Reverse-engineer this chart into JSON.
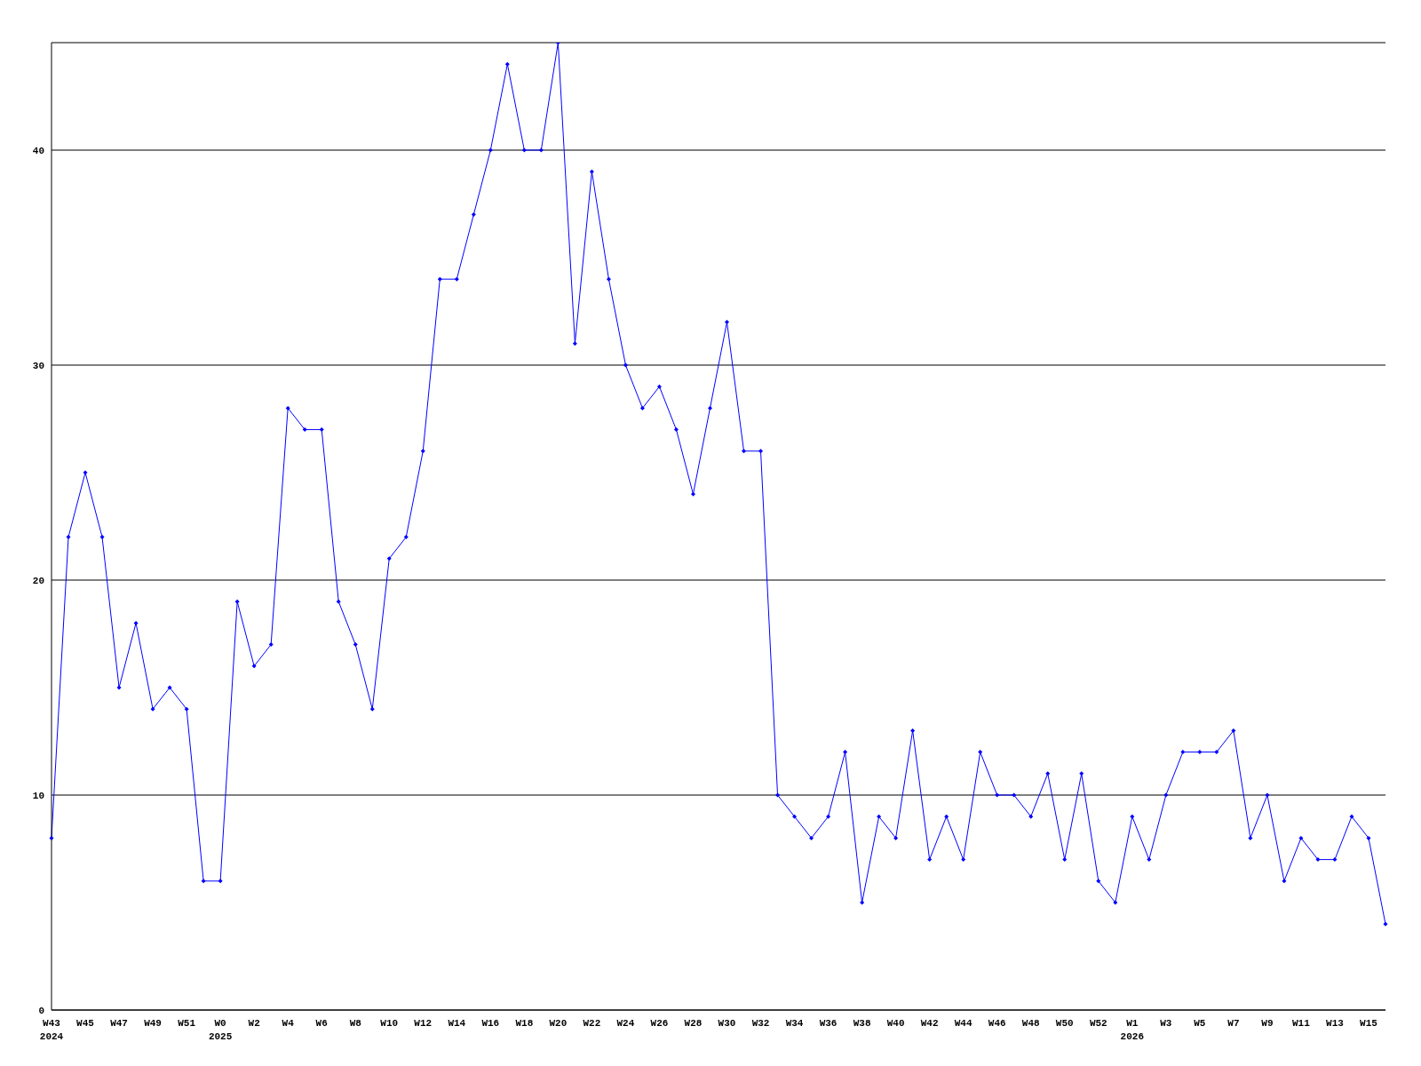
{
  "chart_data": {
    "type": "line",
    "categories": [
      "W43\n2024",
      null,
      "W45",
      null,
      "W47",
      null,
      "W49",
      null,
      "W51",
      null,
      "W0\n2025",
      null,
      "W2",
      null,
      "W4",
      null,
      "W6",
      null,
      "W8",
      null,
      "W10",
      null,
      "W12",
      null,
      "W14",
      null,
      "W16",
      null,
      "W18",
      null,
      "W20",
      null,
      "W22",
      null,
      "W24",
      null,
      "W26",
      null,
      "W28",
      null,
      "W30",
      null,
      "W32",
      null,
      "W34",
      null,
      "W36",
      null,
      "W38",
      null,
      "W40",
      null,
      "W42",
      null,
      "W44",
      null,
      "W46",
      null,
      "W48",
      null,
      "W50",
      null,
      "W52",
      null,
      "W1\n2026",
      null,
      "W3",
      null,
      "W5",
      null,
      "W7",
      null,
      "W9",
      null,
      "W11",
      null,
      "W13",
      null,
      "W15",
      null
    ],
    "series": [
      {
        "color": "#0000ff",
        "values": [
          8,
          22,
          25,
          22,
          15,
          18,
          14,
          15,
          14,
          6,
          6,
          19,
          16,
          17,
          28,
          27,
          27,
          19,
          17,
          14,
          21,
          22,
          26,
          34,
          34,
          37,
          40,
          44,
          40,
          40,
          45,
          31,
          39,
          34,
          30,
          28,
          29,
          27,
          24,
          28,
          32,
          26,
          26,
          10,
          9,
          8,
          9,
          12,
          5,
          9,
          8,
          13,
          7,
          9,
          7,
          12,
          10,
          10,
          9,
          11,
          7,
          11,
          6,
          5,
          9,
          7,
          10,
          12,
          12,
          12,
          13,
          8,
          10,
          6,
          8,
          7,
          7,
          9,
          8,
          4
        ]
      }
    ],
    "ylim": [
      0,
      45
    ],
    "yticks": [
      0,
      10,
      20,
      30,
      40
    ],
    "grid": "y",
    "marker": "diamond",
    "line_style": "solid",
    "legend": false
  }
}
